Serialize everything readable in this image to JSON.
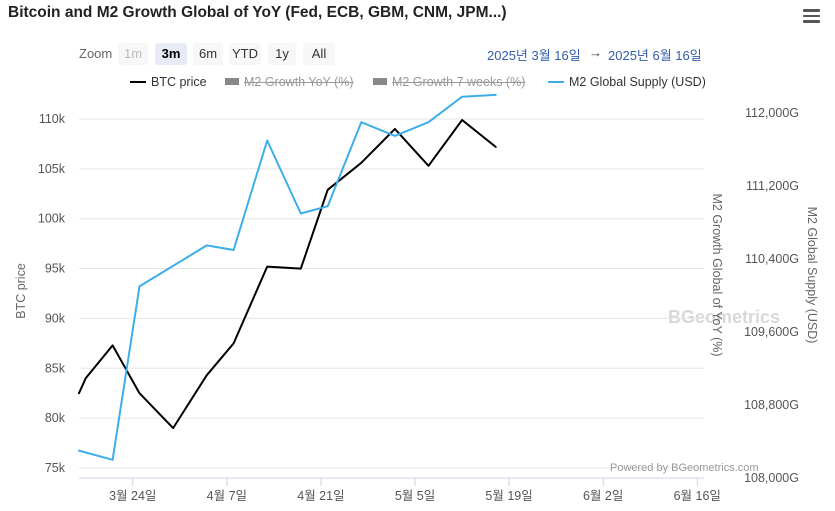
{
  "header": {
    "title": "Bitcoin and M2 Growth Global of YoY (Fed, ECB, GBM, CNM, JPM...)"
  },
  "zoom": {
    "label": "Zoom",
    "buttons": [
      "1m",
      "3m",
      "6m",
      "YTD",
      "1y",
      "All"
    ],
    "selected": "3m",
    "disabled": "1m"
  },
  "range": {
    "from": "2025년 3월 16일",
    "arrow": "→",
    "to": "2025년 6월 16일"
  },
  "legend": [
    {
      "name": "BTC price",
      "color": "#000000",
      "visible": true
    },
    {
      "name": "M2 Growth YoY (%)",
      "color": "#888888",
      "visible": false
    },
    {
      "name": "M2 Growth 7 weeks (%)",
      "color": "#888888",
      "visible": false
    },
    {
      "name": "M2 Global Supply (USD)",
      "color": "#3daee9",
      "visible": true
    }
  ],
  "credits": "Powered by BGeometrics.com",
  "watermark": "BGeometrics",
  "chart_data": {
    "type": "line",
    "title": "Bitcoin and M2 Growth Global of YoY (Fed, ECB, GBM, CNM, JPM...)",
    "x_tick_labels": [
      "3월 24일",
      "4월 7일",
      "4월 21일",
      "5월 5일",
      "5월 19일",
      "6월 2일",
      "6월 16일"
    ],
    "x_tick_day_index": [
      8,
      22,
      36,
      50,
      64,
      78,
      92
    ],
    "x_range": [
      0,
      93
    ],
    "y_axis_left": {
      "label": "BTC price",
      "tick_labels": [
        "75k",
        "80k",
        "85k",
        "90k",
        "95k",
        "100k",
        "105k",
        "110k"
      ],
      "ticks": [
        75000,
        80000,
        85000,
        90000,
        95000,
        100000,
        105000,
        110000
      ],
      "range": [
        74000,
        111500
      ]
    },
    "y_axis_right_1": {
      "label": "M2 Growth Global of YoY (%)"
    },
    "y_axis_right_2": {
      "label": "M2 Global Supply (USD)",
      "tick_labels": [
        "108,000G",
        "108,800G",
        "109,600G",
        "110,400G",
        "111,200G",
        "112,000G"
      ],
      "ticks": [
        108000,
        108800,
        109600,
        110400,
        111200,
        112000
      ],
      "range": [
        108000,
        112100
      ]
    },
    "series": [
      {
        "name": "BTC price",
        "axis": "left",
        "color": "#000000",
        "points": [
          [
            0,
            82500
          ],
          [
            1,
            84000
          ],
          [
            5,
            87300
          ],
          [
            9,
            82500
          ],
          [
            14,
            79000
          ],
          [
            19,
            84300
          ],
          [
            23,
            87500
          ],
          [
            28,
            95200
          ],
          [
            33,
            95000
          ],
          [
            37,
            102900
          ],
          [
            42,
            105600
          ],
          [
            47,
            109000
          ],
          [
            52,
            105300
          ],
          [
            57,
            109900
          ],
          [
            62,
            107200
          ]
        ]
      },
      {
        "name": "M2 Global Supply (USD)",
        "axis": "right2",
        "color": "#3daee9",
        "points": [
          [
            0,
            108300
          ],
          [
            5,
            108200
          ],
          [
            9,
            110100
          ],
          [
            19,
            110550
          ],
          [
            23,
            110500
          ],
          [
            28,
            111700
          ],
          [
            33,
            110900
          ],
          [
            37,
            110980
          ],
          [
            42,
            111900
          ],
          [
            47,
            111750
          ],
          [
            52,
            111900
          ],
          [
            57,
            112180
          ],
          [
            62,
            112200
          ]
        ]
      }
    ]
  }
}
